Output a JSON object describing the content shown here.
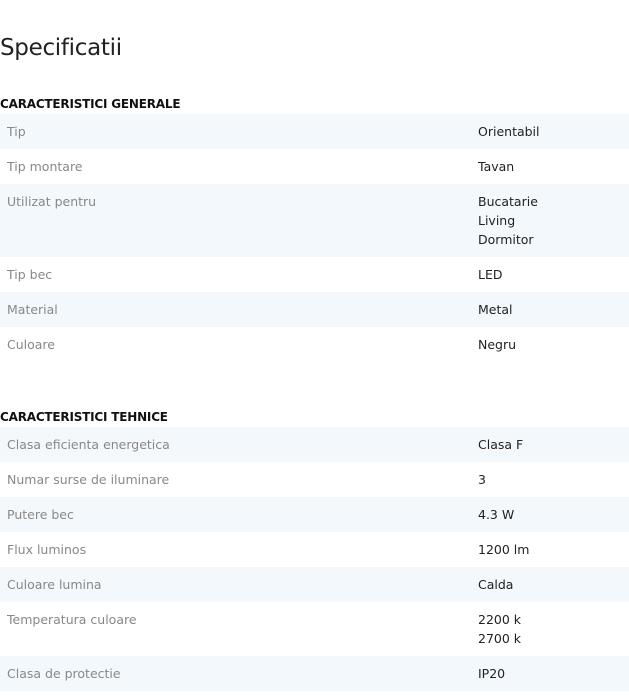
{
  "title": "Specificatii",
  "sections": [
    {
      "heading": "CARACTERISTICI GENERALE",
      "rows": [
        {
          "label": "Tip",
          "values": [
            "Orientabil"
          ]
        },
        {
          "label": "Tip montare",
          "values": [
            "Tavan"
          ]
        },
        {
          "label": "Utilizat pentru",
          "values": [
            "Bucatarie",
            "Living",
            "Dormitor"
          ]
        },
        {
          "label": "Tip bec",
          "values": [
            "LED"
          ]
        },
        {
          "label": "Material",
          "values": [
            "Metal"
          ]
        },
        {
          "label": "Culoare",
          "values": [
            "Negru"
          ]
        }
      ]
    },
    {
      "heading": "CARACTERISTICI TEHNICE",
      "rows": [
        {
          "label": "Clasa eficienta energetica",
          "values": [
            "Clasa F"
          ]
        },
        {
          "label": "Numar surse de iluminare",
          "values": [
            "3"
          ]
        },
        {
          "label": "Putere bec",
          "values": [
            "4.3 W"
          ]
        },
        {
          "label": "Flux luminos",
          "values": [
            "1200 lm"
          ]
        },
        {
          "label": "Culoare lumina",
          "values": [
            "Calda"
          ]
        },
        {
          "label": "Temperatura culoare",
          "values": [
            "2200 k",
            "2700 k"
          ]
        },
        {
          "label": "Clasa de protectie",
          "values": [
            "IP20"
          ]
        }
      ]
    }
  ]
}
